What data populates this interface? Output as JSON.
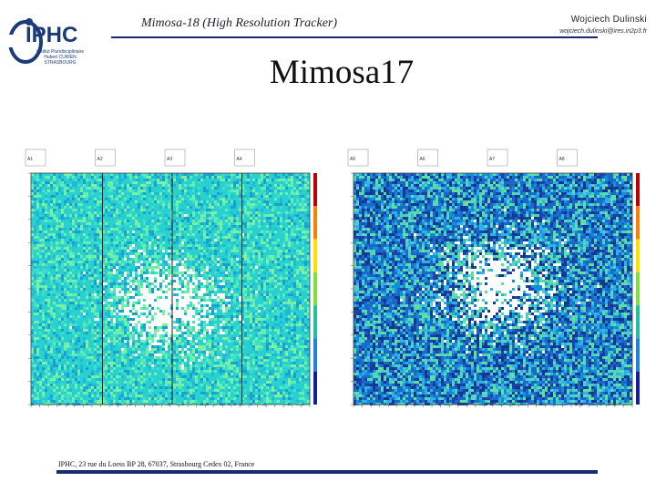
{
  "header": {
    "logo_text": "IPHC",
    "logo_caption": "Institut Pluridisciplinaire Hubert CURIEN STRASBOURG",
    "subject": "Mimosa-18 (High Resolution Tracker)",
    "author": "Wojciech Dulinski",
    "email": "wojciech.dulinski@ires.in2p3.fr"
  },
  "title": "Mimosa17",
  "footer": {
    "address": "IPHC, 23 rue du Loess BP 28, 67037, Strasbourg Cedex 02, France"
  },
  "colors": {
    "accent": "#1b2a6e",
    "logo_blue": "#1b3a7a",
    "map_left_bg": "#29d0d0",
    "map_right_bg": "#1a68c8"
  },
  "plots": [
    {
      "name": "left-hitmap",
      "sub_labels": [
        "A1",
        "A2",
        "A3",
        "A4"
      ],
      "background": "cyan",
      "hot_spot": "center-left"
    },
    {
      "name": "right-hitmap",
      "sub_labels": [
        "A5",
        "A6",
        "A7",
        "A8"
      ],
      "background": "blue",
      "hot_spot": "center"
    }
  ]
}
